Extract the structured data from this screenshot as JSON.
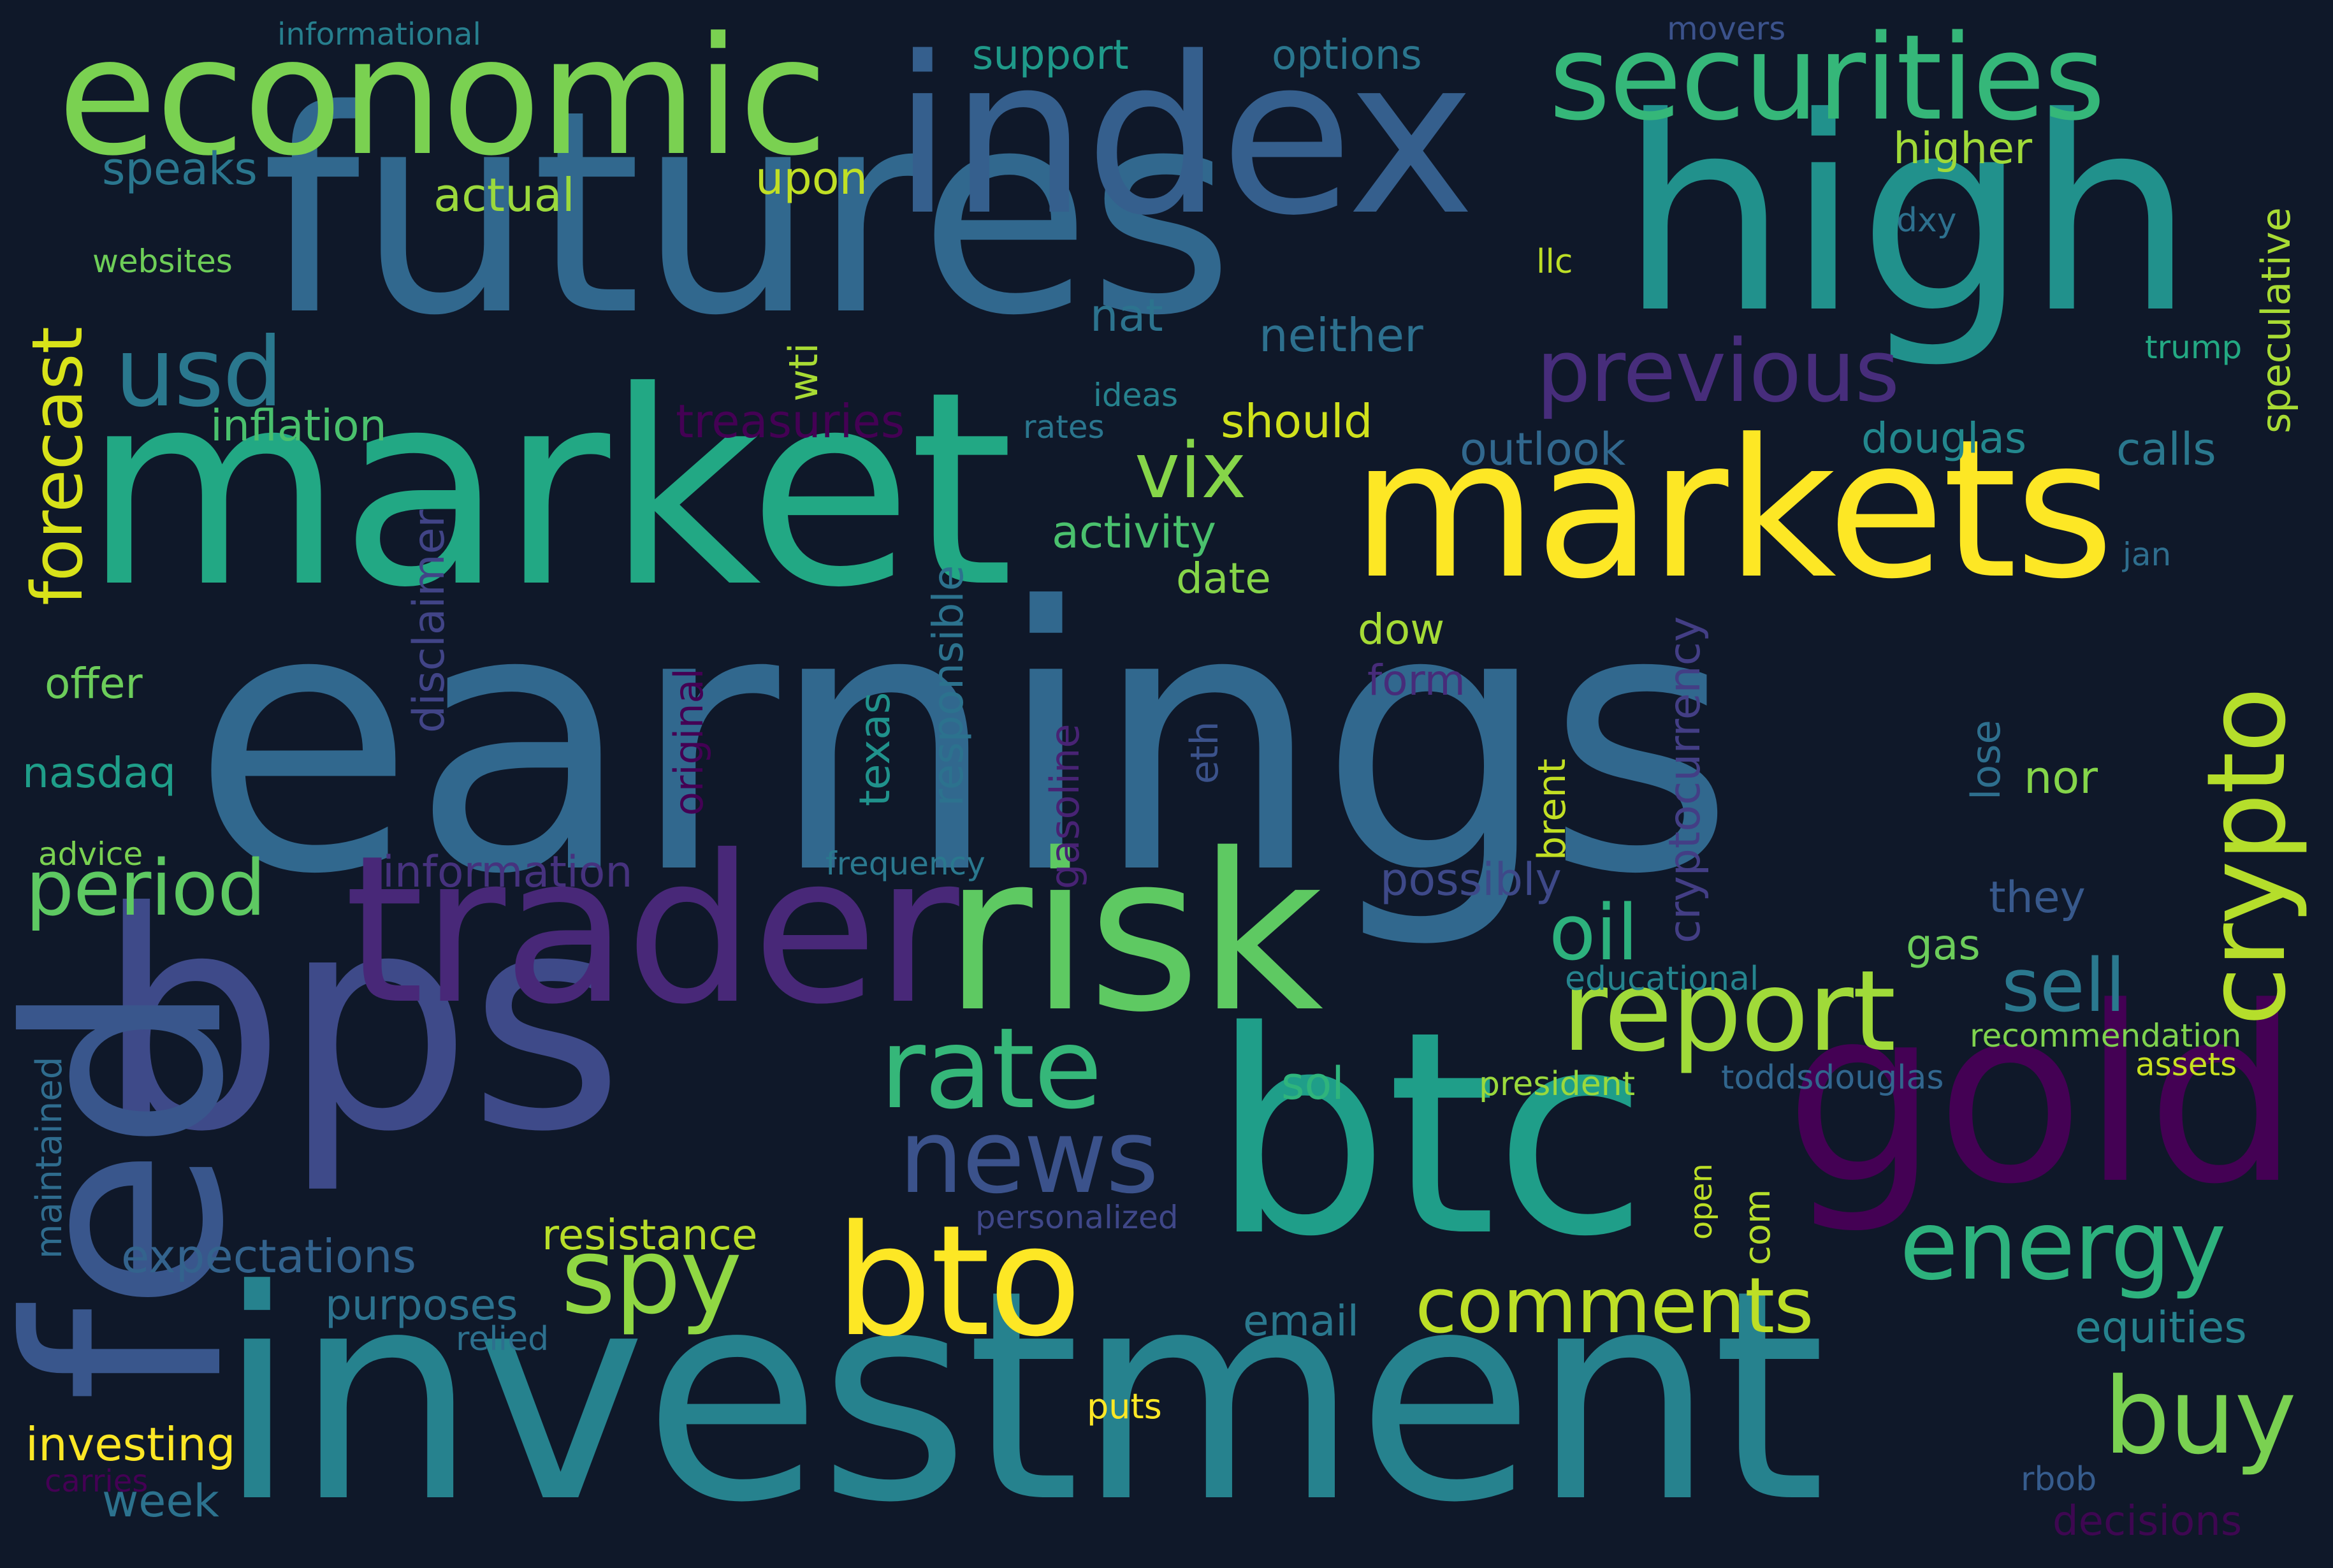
{
  "words": [
    {
      "text": "earnings",
      "color": "#31688e"
    },
    {
      "text": "investment",
      "color": "#26828e"
    },
    {
      "text": "futures",
      "color": "#31688e"
    },
    {
      "text": "market",
      "color": "#22a884"
    },
    {
      "text": "high",
      "color": "#21918c"
    },
    {
      "text": "bps",
      "color": "#3e4a89"
    },
    {
      "text": "btc",
      "color": "#1f9e89"
    },
    {
      "text": "fed",
      "color": "#39568c"
    },
    {
      "text": "markets",
      "color": "#fde725"
    },
    {
      "text": "index",
      "color": "#355f8d"
    },
    {
      "text": "gold",
      "color": "#440154"
    },
    {
      "text": "trader",
      "color": "#482878"
    },
    {
      "text": "risk",
      "color": "#5ec962"
    },
    {
      "text": "economic",
      "color": "#7ad151"
    },
    {
      "text": "securities",
      "color": "#35b779"
    },
    {
      "text": "bto",
      "color": "#fde725"
    },
    {
      "text": "report",
      "color": "#a0da39"
    },
    {
      "text": "crypto",
      "color": "#b5de2b"
    },
    {
      "text": "rate",
      "color": "#35b779"
    },
    {
      "text": "news",
      "color": "#3b528b"
    },
    {
      "text": "spy",
      "color": "#90d743"
    },
    {
      "text": "energy",
      "color": "#2db27d"
    },
    {
      "text": "buy",
      "color": "#7ad151"
    },
    {
      "text": "previous",
      "color": "#472d7b"
    },
    {
      "text": "comments",
      "color": "#bddf26"
    },
    {
      "text": "usd",
      "color": "#2a788e"
    },
    {
      "text": "period",
      "color": "#5ec962"
    },
    {
      "text": "forecast",
      "color": "#d8e219"
    },
    {
      "text": "vix",
      "color": "#86d549"
    },
    {
      "text": "oil",
      "color": "#2db27d"
    },
    {
      "text": "sell",
      "color": "#2a788e"
    },
    {
      "text": "disclaimer",
      "color": "#414487"
    },
    {
      "text": "cryptocurrency",
      "color": "#433e85"
    },
    {
      "text": "speculative",
      "color": "#a8db34"
    },
    {
      "text": "expectations",
      "color": "#33638d"
    },
    {
      "text": "resistance",
      "color": "#b8de29"
    },
    {
      "text": "information",
      "color": "#46327e"
    },
    {
      "text": "activity",
      "color": "#4ac16d"
    },
    {
      "text": "support",
      "color": "#1f9a8a"
    },
    {
      "text": "options",
      "color": "#2a768e"
    },
    {
      "text": "inflation",
      "color": "#4ac16d"
    },
    {
      "text": "treasuries",
      "color": "#440154"
    },
    {
      "text": "purposes",
      "color": "#2c728e"
    },
    {
      "text": "higher",
      "color": "#a0da39"
    },
    {
      "text": "actual",
      "color": "#9bd93c"
    },
    {
      "text": "should",
      "color": "#d0e11c"
    },
    {
      "text": "outlook",
      "color": "#31688e"
    },
    {
      "text": "douglas",
      "color": "#23888e"
    },
    {
      "text": "calls",
      "color": "#2a788e"
    },
    {
      "text": "neither",
      "color": "#2d708e"
    },
    {
      "text": "upon",
      "color": "#c0df25"
    },
    {
      "text": "speaks",
      "color": "#2a768e"
    },
    {
      "text": "nat",
      "color": "#2c738e"
    },
    {
      "text": "date",
      "color": "#86d549"
    },
    {
      "text": "dow",
      "color": "#a5db36"
    },
    {
      "text": "form",
      "color": "#472c7a"
    },
    {
      "text": "possibly",
      "color": "#3e4989"
    },
    {
      "text": "gas",
      "color": "#6ccd5a"
    },
    {
      "text": "they",
      "color": "#38598c"
    },
    {
      "text": "nor",
      "color": "#85d54a"
    },
    {
      "text": "email",
      "color": "#2a788e"
    },
    {
      "text": "equities",
      "color": "#26828e"
    },
    {
      "text": "sol",
      "color": "#2fb47c"
    },
    {
      "text": "investing",
      "color": "#fde725"
    },
    {
      "text": "week",
      "color": "#2c728e"
    },
    {
      "text": "offer",
      "color": "#6ccd5a"
    },
    {
      "text": "nasdaq",
      "color": "#1f9e89"
    },
    {
      "text": "maintained",
      "color": "#2f6c8e"
    },
    {
      "text": "texas",
      "color": "#20928c"
    },
    {
      "text": "responsible",
      "color": "#2c728e"
    },
    {
      "text": "gasoline",
      "color": "#482374"
    },
    {
      "text": "original",
      "color": "#440154"
    },
    {
      "text": "eth",
      "color": "#3b528b"
    },
    {
      "text": "brent",
      "color": "#c2df23"
    },
    {
      "text": "lose",
      "color": "#2e6f8e"
    },
    {
      "text": "wti",
      "color": "#a8db34"
    },
    {
      "text": "com",
      "color": "#b5de2b"
    },
    {
      "text": "open",
      "color": "#bddf26"
    },
    {
      "text": "decisions",
      "color": "#3e0751"
    },
    {
      "text": "informational",
      "color": "#277f8e"
    },
    {
      "text": "movers",
      "color": "#3b528b"
    },
    {
      "text": "websites",
      "color": "#6ece58"
    },
    {
      "text": "llc",
      "color": "#bddf26"
    },
    {
      "text": "dxy",
      "color": "#2d708e"
    },
    {
      "text": "trump",
      "color": "#23a983"
    },
    {
      "text": "ideas",
      "color": "#26828e"
    },
    {
      "text": "rates",
      "color": "#2a768e"
    },
    {
      "text": "jan",
      "color": "#2e6e8e"
    },
    {
      "text": "advice",
      "color": "#7ad151"
    },
    {
      "text": "frequency",
      "color": "#2a788e"
    },
    {
      "text": "educational",
      "color": "#25848e"
    },
    {
      "text": "recommendation",
      "color": "#7fd34e"
    },
    {
      "text": "president",
      "color": "#9bd93c"
    },
    {
      "text": "toddsdouglas",
      "color": "#31668e"
    },
    {
      "text": "assets",
      "color": "#c8e020"
    },
    {
      "text": "personalized",
      "color": "#3f4788"
    },
    {
      "text": "relied",
      "color": "#2d708e"
    },
    {
      "text": "puts",
      "color": "#fde725"
    },
    {
      "text": "carries",
      "color": "#440154"
    },
    {
      "text": "rbob",
      "color": "#365c8d"
    }
  ]
}
